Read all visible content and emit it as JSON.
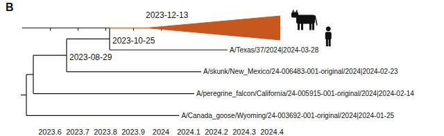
{
  "chart_data": {
    "type": "tree",
    "panel_label": "B",
    "xlim": [
      2023.5,
      2024.43
    ],
    "xticks": [
      2023.6,
      2023.7,
      2023.8,
      2023.9,
      2024,
      2024.1,
      2024.2,
      2024.3,
      2024.4
    ],
    "grid": false,
    "tick_labels": "x",
    "tree": {
      "x": 2023.515,
      "children": [
        {
          "x": 2023.54,
          "children": [
            {
              "x": 2023.66,
              "label": "2023-08-29",
              "children": [
                {
                  "x": 2023.815,
                  "label": "2023-10-25",
                  "children": [
                    {
                      "clade": true,
                      "x": 2023.95,
                      "x_end": 2024.43,
                      "label": "2023-12-13",
                      "color": "#c8571e",
                      "marker": "cow"
                    },
                    {
                      "x": 2024.24,
                      "label": "A/Texas/37/2024|2024-03-28",
                      "marker": "human"
                    }
                  ]
                },
                {
                  "x": 2024.145,
                  "label": "A/skunk/New_Mexico/24-006483-001-original/2024|2024-02-23"
                }
              ]
            },
            {
              "x": 2024.12,
              "label": "A/peregrine_falcon/California/24-005915-001-original/2024|2024-02-14"
            }
          ]
        },
        {
          "x": 2024.066,
          "label": "A/Canada_goose/Wyoming/24-003692-001-original/2024|2024-01-25"
        }
      ]
    }
  }
}
